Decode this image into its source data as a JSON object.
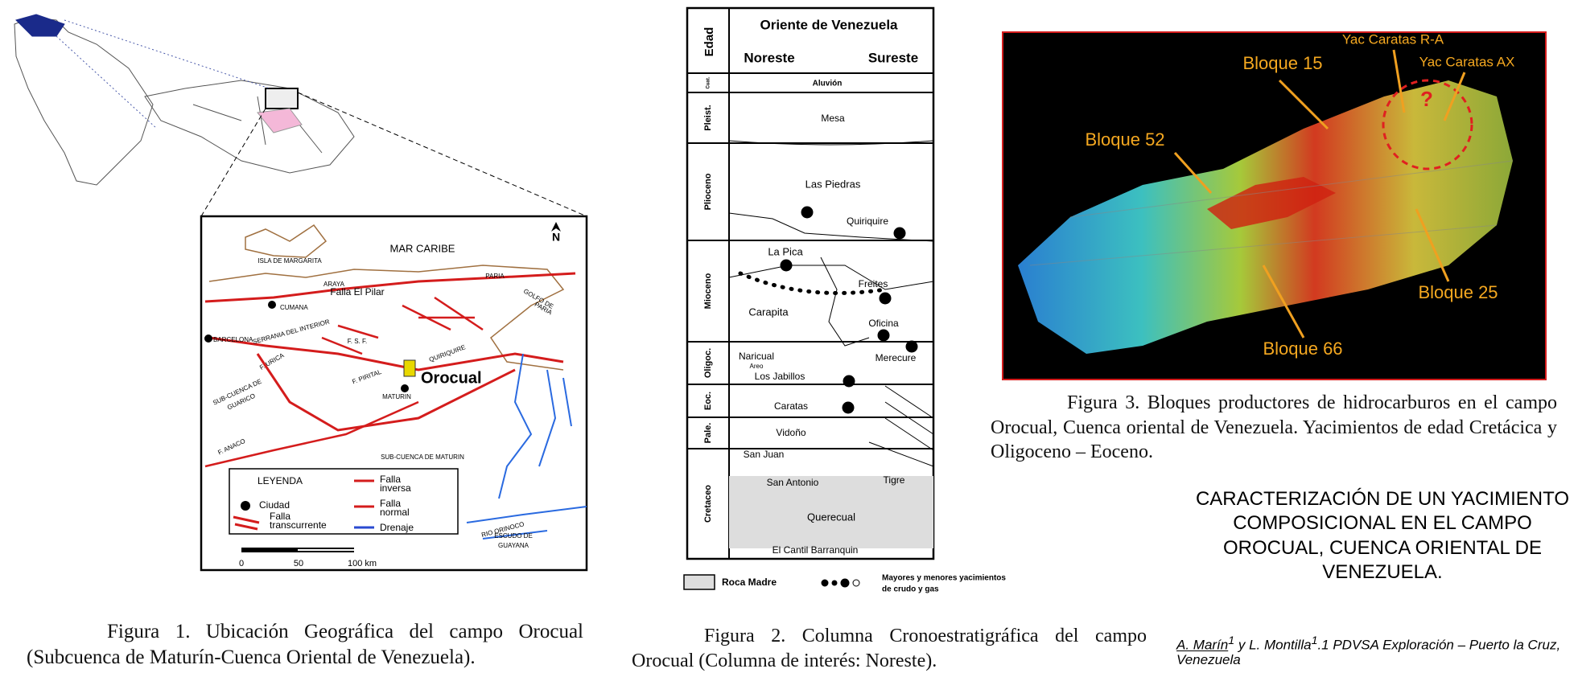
{
  "figure1": {
    "map_labels": [
      "MAR CARIBE",
      "ISLA DE MARGARITA",
      "PARIA",
      "ARAYA",
      "Falla El Pilar",
      "CUMANA",
      "GOLFO DE",
      "PARIA",
      "BARCELONA",
      "SERRANIA DEL INTERIOR",
      "F. S. F.",
      "F. URICA",
      "QUIRIQUIRE",
      "Orocual",
      "F. PIRITAL",
      "MATURIN",
      "SUB-CUENCA DE",
      "GUARICO",
      "F. ANACO",
      "SUB-CUENCA DE MATURIN",
      "RIO ORINOCO",
      "ESCUDO DE",
      "GUAYANA",
      "N"
    ],
    "legend": {
      "title": "LEYENDA",
      "items": [
        "Ciudad",
        "Falla",
        "inversa",
        "Falla",
        "normal",
        "Falla",
        "transcurrente",
        "Drenaje"
      ]
    },
    "scale": [
      "0",
      "50",
      "100 km"
    ],
    "caption": "Figura 1. Ubicación Geográfica del campo Orocual (Subcuenca de Maturín-Cuenca Oriental de Venezuela)."
  },
  "figure2": {
    "header": {
      "age": "Edad",
      "title": "Oriente de Venezuela",
      "left": "Noreste",
      "right": "Sureste"
    },
    "ages": [
      "Cuat.",
      "Pleist.",
      "Plioceno",
      "Mioceno",
      "Oligoc.",
      "Eoc.",
      "Pale.",
      "Cretaceo"
    ],
    "formations": [
      "Aluvión",
      "Mesa",
      "Las Piedras",
      "Quiriquire",
      "La Pica",
      "Freites",
      "Carapita",
      "Oficina",
      "Naricual",
      "Areo",
      "Merecure",
      "Los Jabillos",
      "Caratas",
      "Vidoño",
      "San Juan",
      "San Antonio",
      "Tigre",
      "Querecual",
      "El Cantil Barranquin"
    ],
    "legend": {
      "source_rock": "Roca Madre",
      "fields": [
        "Mayores y menores yacimientos",
        "de crudo y gas"
      ]
    },
    "caption": "Figura 2. Columna Cronoestratigráfica del campo Orocual (Columna de interés: Noreste)."
  },
  "figure3": {
    "labels": [
      "Yac Caratas R-A",
      "Yac Caratas AX",
      "Bloque 15",
      "?",
      "Bloque 52",
      "Bloque 25",
      "Bloque 66"
    ],
    "caption": "Figura 3. Bloques productores de hidrocarburos en el campo Orocual, Cuenca oriental de Venezuela. Yacimientos de edad Cretácica y Oligoceno – Eoceno."
  },
  "title": "CARACTERIZACIÓN DE UN YACIMIENTO COMPOSICIONAL EN EL CAMPO OROCUAL, CUENCA ORIENTAL DE VENEZUELA.",
  "authors": {
    "first": "A. Marín",
    "sup1": "1",
    "middle": " y L. Montilla",
    "sup2": "1",
    "affiliation": ".1 PDVSA Exploración – Puerto la Cruz, Venezuela"
  }
}
